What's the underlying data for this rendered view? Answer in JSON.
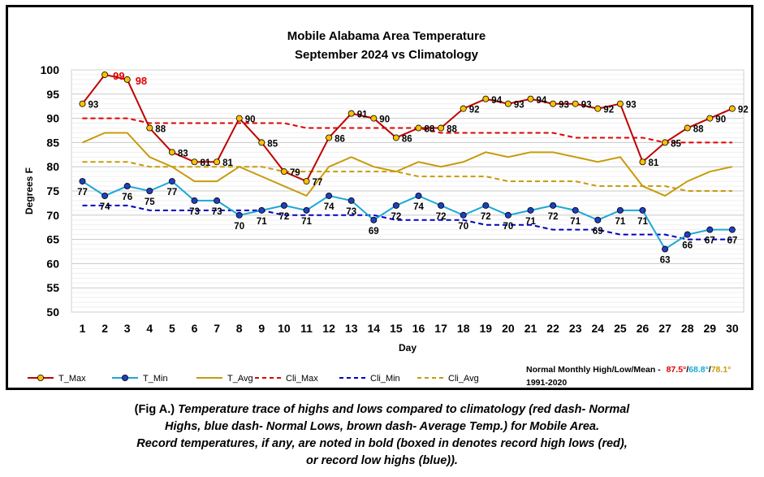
{
  "caption": {
    "prefix": "(Fig A.)",
    "lines": [
      "Temperature trace of highs and lows compared to climatology (red dash- Normal",
      "Highs, blue dash- Normal Lows, brown dash- Average Temp.) for Mobile Area.",
      "Record temperatures, if any, are noted in bold (boxed in denotes record high lows (red),",
      "or record low highs (blue))."
    ]
  },
  "normals_note": {
    "label": "Normal Monthly High/Low/Mean -",
    "high": "87.5°",
    "sep1": "/",
    "low": "68.8°",
    "sep2": "/",
    "mean": "78.1°",
    "period": "1991-2020",
    "colors": {
      "high": "#e00000",
      "low": "#1aa8d8",
      "mean": "#c89b0a"
    }
  },
  "chart_data": {
    "type": "line",
    "title": "Mobile Alabama Area Temperature",
    "subtitle": "September 2024 vs Climatology",
    "xlabel": "Day",
    "ylabel": "Degrees F",
    "ylim": [
      50,
      100
    ],
    "yticks": [
      50,
      55,
      60,
      65,
      70,
      75,
      80,
      85,
      90,
      95,
      100
    ],
    "grid": true,
    "legend_position": "bottom",
    "x": [
      1,
      2,
      3,
      4,
      5,
      6,
      7,
      8,
      9,
      10,
      11,
      12,
      13,
      14,
      15,
      16,
      17,
      18,
      19,
      20,
      21,
      22,
      23,
      24,
      25,
      26,
      27,
      28,
      29,
      30
    ],
    "series": [
      {
        "name": "T_Max",
        "color": "#c00000",
        "style": "solid-marker",
        "marker_fill": "#ffc000",
        "values": [
          93,
          99,
          98,
          88,
          83,
          81,
          81,
          90,
          85,
          79,
          77,
          86,
          91,
          90,
          86,
          88,
          88,
          92,
          94,
          93,
          94,
          93,
          93,
          92,
          93,
          81,
          85,
          88,
          90,
          92
        ]
      },
      {
        "name": "T_Min",
        "color": "#1aa8d8",
        "style": "solid-marker",
        "marker_fill": "#1f3fbf",
        "values": [
          77,
          74,
          76,
          75,
          77,
          73,
          73,
          70,
          71,
          72,
          71,
          74,
          73,
          69,
          72,
          74,
          72,
          70,
          72,
          70,
          71,
          72,
          71,
          69,
          71,
          71,
          63,
          66,
          67,
          67
        ]
      },
      {
        "name": "T_Avg",
        "color": "#c89b0a",
        "style": "solid",
        "values": [
          85,
          87,
          87,
          82,
          80,
          77,
          77,
          80,
          78,
          76,
          74,
          80,
          82,
          80,
          79,
          81,
          80,
          81,
          83,
          82,
          83,
          83,
          82,
          81,
          82,
          76,
          74,
          77,
          79,
          80
        ]
      },
      {
        "name": "Cli_Max",
        "color": "#e00000",
        "style": "dash",
        "values": [
          90,
          90,
          90,
          89,
          89,
          89,
          89,
          89,
          89,
          89,
          88,
          88,
          88,
          88,
          88,
          88,
          87,
          87,
          87,
          87,
          87,
          87,
          86,
          86,
          86,
          86,
          85,
          85,
          85,
          85
        ]
      },
      {
        "name": "Cli_Min",
        "color": "#0000c0",
        "style": "dash",
        "values": [
          72,
          72,
          72,
          71,
          71,
          71,
          71,
          71,
          71,
          70,
          70,
          70,
          70,
          70,
          69,
          69,
          69,
          69,
          68,
          68,
          68,
          67,
          67,
          67,
          66,
          66,
          66,
          65,
          65,
          65
        ]
      },
      {
        "name": "Cli_Avg",
        "color": "#c89b0a",
        "style": "dash",
        "values": [
          81,
          81,
          81,
          80,
          80,
          80,
          80,
          80,
          80,
          79,
          79,
          79,
          79,
          79,
          79,
          78,
          78,
          78,
          78,
          77,
          77,
          77,
          77,
          76,
          76,
          76,
          76,
          75,
          75,
          75
        ]
      }
    ],
    "records": [
      {
        "day": 2,
        "value": 99,
        "label": "99"
      },
      {
        "day": 3,
        "value": 98,
        "label": "98"
      }
    ]
  }
}
